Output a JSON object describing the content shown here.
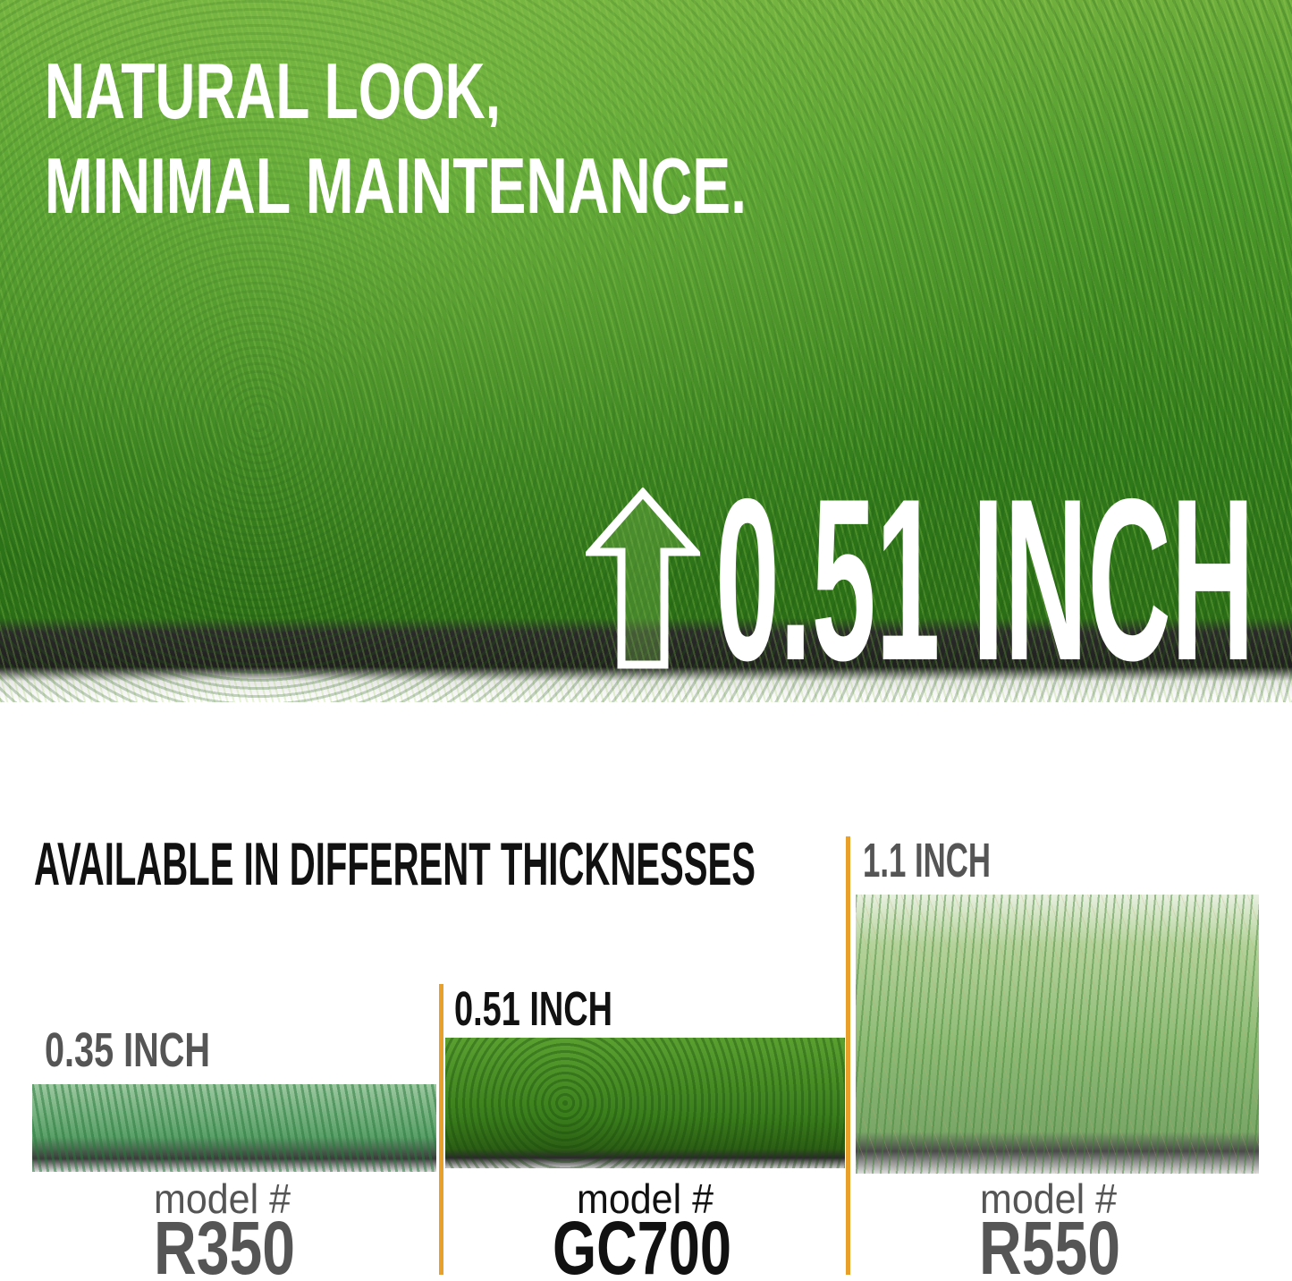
{
  "hero": {
    "headline_line1": "NATURAL LOOK,",
    "headline_line2": "MINIMAL MAINTENANCE.",
    "pile_height": "0.51 INCH",
    "icon": "up-arrow-icon"
  },
  "comparison": {
    "title": "AVAILABLE IN DIFFERENT THICKNESSES",
    "accent_color": "#e8a02a",
    "models": [
      {
        "thickness": "0.35 INCH",
        "label": "model #",
        "model": "R350",
        "text_color": "#555555"
      },
      {
        "thickness": "0.51 INCH",
        "label": "model #",
        "model": "GC700",
        "text_color": "#111111"
      },
      {
        "thickness": "1.1 INCH",
        "label": "model #",
        "model": "R550",
        "text_color": "#555555"
      }
    ]
  }
}
